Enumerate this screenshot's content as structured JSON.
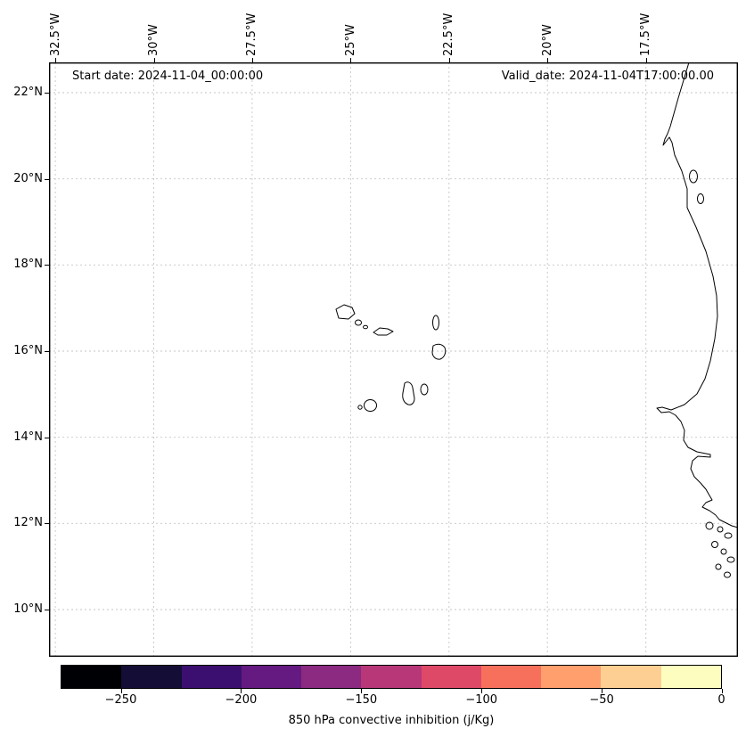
{
  "figure": {
    "background_color": "#ffffff",
    "map_background": "#ffffff",
    "coastline_color": "#000000",
    "grid_color": "#c6c6c6",
    "regions": [
      "Cape Verde archipelago",
      "West African coastline (Mauritania, Senegal, The Gambia, Guinea-Bissau)"
    ]
  },
  "chart_data": {
    "type": "heatmap",
    "subtype": "geographic map plot; field area is blank white, only coastlines drawn",
    "title": "",
    "annotations": {
      "start_date": "Start date: 2024-11-04_00:00:00",
      "valid_date": "Valid_date: 2024-11-04T17:00:00.00"
    },
    "x_axis": {
      "side": "top",
      "tick_rotation_deg": 90,
      "tick_labels": [
        "32.5°W",
        "30°W",
        "27.5°W",
        "25°W",
        "22.5°W",
        "20°W",
        "17.5°W"
      ]
    },
    "y_axis": {
      "side": "left",
      "tick_labels": [
        "22°N",
        "20°N",
        "18°N",
        "16°N",
        "14°N",
        "12°N",
        "10°N"
      ]
    },
    "approx_extent": {
      "west_lon": "32.7°W",
      "east_lon": "15.2°W",
      "south_lat": "8.9°N",
      "north_lat": "22.7°N"
    },
    "grid": {
      "visible": true,
      "line_style": "dashed"
    },
    "colorbar": {
      "label": "850 hPa convective inhibition (j/Kg)",
      "orientation": "horizontal",
      "colormap": "magma",
      "tick_labels": [
        "−250",
        "−200",
        "−150",
        "−100",
        "−50",
        "0"
      ],
      "tick_values": [
        -250,
        -200,
        -150,
        -100,
        -50,
        0
      ],
      "value_range": [
        -275,
        0
      ],
      "n_segments": 11,
      "segment_colors": [
        "#000004",
        "#140e36",
        "#3b0f70",
        "#641a80",
        "#8c2981",
        "#b73779",
        "#de4968",
        "#f7705c",
        "#fe9f6d",
        "#fecf92",
        "#fcfdbf"
      ]
    }
  }
}
